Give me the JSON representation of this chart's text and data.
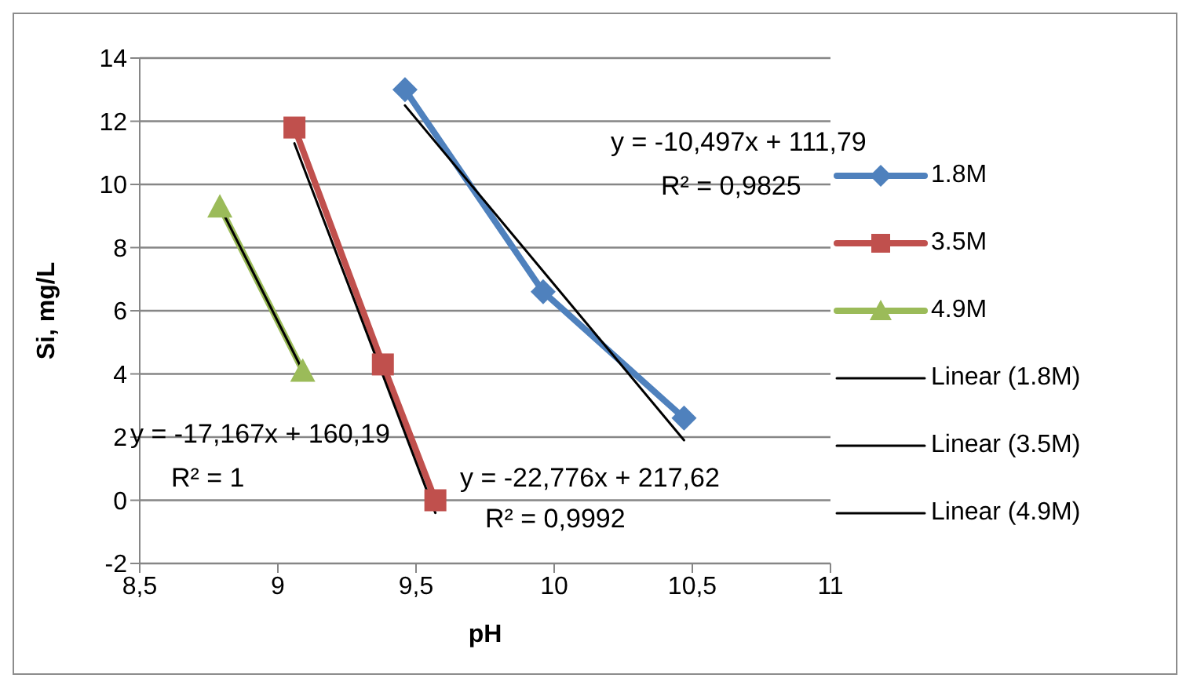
{
  "chart_data": {
    "type": "line",
    "xlabel": "pH",
    "ylabel": "Si, mg/L",
    "xlim": [
      8.5,
      11
    ],
    "xticks": [
      {
        "value": 8.5,
        "label": "8,5"
      },
      9,
      {
        "value": 9.5,
        "label": "9,5"
      },
      10,
      {
        "value": 10.5,
        "label": "10,5"
      },
      11
    ],
    "ylim": [
      -2,
      14
    ],
    "yticks": [
      -2,
      0,
      2,
      4,
      6,
      8,
      10,
      12,
      14
    ],
    "grid": "y",
    "legend": "right",
    "series": [
      {
        "name": "1.8M",
        "color": "#4f81bd",
        "marker": "diamond",
        "x": [
          9.46,
          9.96,
          10.47
        ],
        "values": [
          13,
          6.6,
          2.6
        ]
      },
      {
        "name": "3.5M",
        "color": "#c0504d",
        "marker": "square",
        "x": [
          9.06,
          9.38,
          9.57
        ],
        "values": [
          11.8,
          4.3,
          0
        ]
      },
      {
        "name": "4.9M",
        "color": "#9bbb59",
        "marker": "triangle",
        "x": [
          8.79,
          9.09
        ],
        "values": [
          9.3,
          4.1
        ]
      },
      {
        "name": "Linear (1.8M)",
        "color": "#000000",
        "marker": "none",
        "x": [
          9.46,
          10.47
        ],
        "values": [
          12.5,
          1.9
        ]
      },
      {
        "name": "Linear (3.5M)",
        "color": "#000000",
        "marker": "none",
        "x": [
          9.06,
          9.57
        ],
        "values": [
          11.3,
          -0.4
        ]
      },
      {
        "name": "Linear (4.9M)",
        "color": "#000000",
        "marker": "none",
        "x": [
          8.79,
          9.09
        ],
        "values": [
          9.3,
          4.1
        ]
      }
    ],
    "annotations": [
      "y = -10,497x + 111,79",
      "R² = 0,9825",
      "y = -17,167x + 160,19",
      "R² = 1",
      "y = -22,776x + 217,62",
      "R² = 0,9992"
    ]
  }
}
